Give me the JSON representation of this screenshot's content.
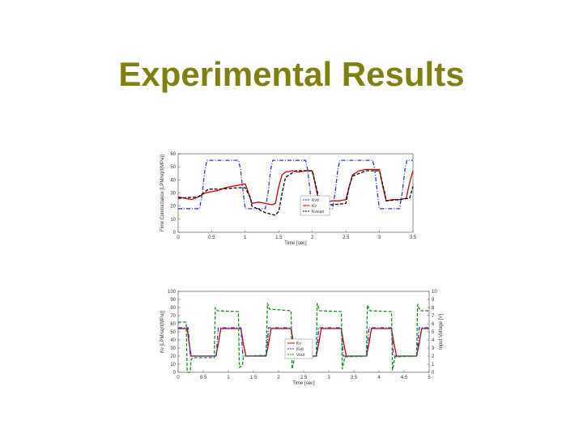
{
  "slide": {
    "title": "Experimental Results"
  },
  "chart_data": [
    {
      "type": "line",
      "xlabel": "Time [sec]",
      "ylabel": "Flow Conductance [LPM/sqrt(MPa)]",
      "xlim": [
        0,
        3.5
      ],
      "ylim": [
        0,
        60
      ],
      "xticks": [
        "0",
        "0.5",
        "1",
        "1.5",
        "2",
        "2.5",
        "3",
        "3.5"
      ],
      "yticks": [
        "0",
        "10",
        "20",
        "30",
        "40",
        "50",
        "60"
      ],
      "grid": false,
      "legend_position": "center-right",
      "series": [
        {
          "name": "Kvd",
          "color": "#1f3bd0",
          "style": "dash-dot",
          "points": [
            [
              0,
              18
            ],
            [
              0.32,
              18
            ],
            [
              0.36,
              30
            ],
            [
              0.4,
              48
            ],
            [
              0.43,
              55
            ],
            [
              0.9,
              55
            ],
            [
              0.93,
              48
            ],
            [
              0.97,
              30
            ],
            [
              1,
              18
            ],
            [
              1.3,
              18
            ],
            [
              1.34,
              30
            ],
            [
              1.38,
              48
            ],
            [
              1.41,
              55
            ],
            [
              1.9,
              55
            ],
            [
              1.93,
              48
            ],
            [
              1.97,
              30
            ],
            [
              2,
              18
            ],
            [
              2.3,
              18
            ],
            [
              2.34,
              30
            ],
            [
              2.38,
              48
            ],
            [
              2.41,
              55
            ],
            [
              2.9,
              55
            ],
            [
              2.93,
              48
            ],
            [
              2.97,
              30
            ],
            [
              3,
              18
            ],
            [
              3.3,
              18
            ],
            [
              3.34,
              30
            ],
            [
              3.38,
              48
            ],
            [
              3.41,
              55
            ],
            [
              3.5,
              55
            ]
          ]
        },
        {
          "name": "Kv",
          "color": "#d00000",
          "style": "solid",
          "points": [
            [
              0,
              27
            ],
            [
              0.1,
              26
            ],
            [
              0.2,
              25
            ],
            [
              0.3,
              27
            ],
            [
              0.4,
              30
            ],
            [
              0.5,
              31
            ],
            [
              0.6,
              32
            ],
            [
              0.7,
              34
            ],
            [
              0.8,
              35
            ],
            [
              0.9,
              36
            ],
            [
              1,
              37
            ],
            [
              1.05,
              30
            ],
            [
              1.1,
              22
            ],
            [
              1.2,
              23
            ],
            [
              1.3,
              22
            ],
            [
              1.4,
              21
            ],
            [
              1.45,
              22
            ],
            [
              1.5,
              35
            ],
            [
              1.55,
              44
            ],
            [
              1.6,
              46
            ],
            [
              1.7,
              47
            ],
            [
              1.8,
              46
            ],
            [
              1.9,
              47
            ],
            [
              2,
              47
            ],
            [
              2.05,
              35
            ],
            [
              2.1,
              22
            ],
            [
              2.2,
              23
            ],
            [
              2.3,
              24
            ],
            [
              2.4,
              24
            ],
            [
              2.5,
              25
            ],
            [
              2.55,
              35
            ],
            [
              2.6,
              44
            ],
            [
              2.7,
              47
            ],
            [
              2.8,
              48
            ],
            [
              2.9,
              48
            ],
            [
              3,
              48
            ],
            [
              3.05,
              35
            ],
            [
              3.1,
              24
            ],
            [
              3.2,
              25
            ],
            [
              3.3,
              25
            ],
            [
              3.4,
              26
            ],
            [
              3.45,
              38
            ],
            [
              3.5,
              47
            ]
          ]
        },
        {
          "name": "Kvsupr",
          "color": "#000000",
          "style": "dashed",
          "points": [
            [
              0,
              26
            ],
            [
              0.3,
              27
            ],
            [
              0.45,
              33
            ],
            [
              0.6,
              33
            ],
            [
              0.9,
              34
            ],
            [
              1,
              34
            ],
            [
              1.08,
              26
            ],
            [
              1.1,
              20
            ],
            [
              1.3,
              15
            ],
            [
              1.45,
              13
            ],
            [
              1.5,
              16
            ],
            [
              1.55,
              30
            ],
            [
              1.6,
              42
            ],
            [
              1.75,
              47
            ],
            [
              2,
              47
            ],
            [
              2.08,
              30
            ],
            [
              2.1,
              22
            ],
            [
              2.3,
              21
            ],
            [
              2.5,
              22
            ],
            [
              2.55,
              35
            ],
            [
              2.6,
              43
            ],
            [
              2.8,
              47
            ],
            [
              3,
              47
            ],
            [
              3.08,
              30
            ],
            [
              3.1,
              24
            ],
            [
              3.3,
              25
            ],
            [
              3.45,
              26
            ],
            [
              3.5,
              35
            ]
          ]
        }
      ]
    },
    {
      "type": "line",
      "xlabel": "Time [sec]",
      "ylabel": "Kv [LPM/sqrt(MPa)]",
      "ylabel_right": "Input Voltage [V]",
      "xlim": [
        0,
        5
      ],
      "ylim": [
        0,
        100
      ],
      "ylim_right": [
        0,
        10
      ],
      "xticks": [
        "0",
        "0.5",
        "1",
        "1.5",
        "2",
        "2.5",
        "3",
        "3.5",
        "4",
        "4.5",
        "5"
      ],
      "yticks": [
        "0",
        "10",
        "20",
        "30",
        "40",
        "50",
        "60",
        "70",
        "80",
        "90",
        "100"
      ],
      "yticks_right": [
        "0",
        "1",
        "2",
        "3",
        "4",
        "5",
        "6",
        "7",
        "8",
        "9",
        "10"
      ],
      "grid": false,
      "legend_position": "center-right",
      "series": [
        {
          "name": "Kv",
          "color": "#d00000",
          "style": "solid",
          "points": [
            [
              0,
              54
            ],
            [
              0.18,
              54
            ],
            [
              0.22,
              35
            ],
            [
              0.26,
              20
            ],
            [
              0.75,
              20
            ],
            [
              0.8,
              35
            ],
            [
              0.85,
              54
            ],
            [
              1.25,
              54
            ],
            [
              1.3,
              35
            ],
            [
              1.35,
              20
            ],
            [
              1.75,
              20
            ],
            [
              1.8,
              35
            ],
            [
              1.85,
              54
            ],
            [
              2.25,
              54
            ],
            [
              2.3,
              35
            ],
            [
              2.35,
              20
            ],
            [
              2.75,
              20
            ],
            [
              2.8,
              35
            ],
            [
              2.85,
              54
            ],
            [
              3.25,
              54
            ],
            [
              3.3,
              35
            ],
            [
              3.35,
              20
            ],
            [
              3.75,
              20
            ],
            [
              3.8,
              35
            ],
            [
              3.85,
              54
            ],
            [
              4.25,
              54
            ],
            [
              4.3,
              35
            ],
            [
              4.35,
              20
            ],
            [
              4.75,
              20
            ],
            [
              4.8,
              35
            ],
            [
              4.85,
              54
            ],
            [
              5,
              54
            ]
          ]
        },
        {
          "name": "Kvd",
          "color": "#1f3bd0",
          "style": "dash-dot",
          "points": [
            [
              0,
              55
            ],
            [
              0.2,
              55
            ],
            [
              0.24,
              20
            ],
            [
              0.76,
              20
            ],
            [
              0.8,
              55
            ],
            [
              1.25,
              55
            ],
            [
              1.29,
              20
            ],
            [
              1.76,
              20
            ],
            [
              1.8,
              55
            ],
            [
              2.25,
              55
            ],
            [
              2.29,
              20
            ],
            [
              2.76,
              20
            ],
            [
              2.8,
              55
            ],
            [
              3.25,
              55
            ],
            [
              3.29,
              20
            ],
            [
              3.76,
              20
            ],
            [
              3.8,
              55
            ],
            [
              4.25,
              55
            ],
            [
              4.29,
              20
            ],
            [
              4.76,
              20
            ],
            [
              4.8,
              55
            ],
            [
              5,
              55
            ]
          ]
        },
        {
          "name": "Vout",
          "color": "#1a8a1a",
          "style": "dashed",
          "axis": "right",
          "points": [
            [
              0,
              6.2
            ],
            [
              0.16,
              6.2
            ],
            [
              0.18,
              0
            ],
            [
              0.24,
              0
            ],
            [
              0.26,
              1.6
            ],
            [
              0.3,
              1.8
            ],
            [
              0.72,
              1.8
            ],
            [
              0.74,
              8
            ],
            [
              0.78,
              7.6
            ],
            [
              1.2,
              7.5
            ],
            [
              1.22,
              0.6
            ],
            [
              1.28,
              0.8
            ],
            [
              1.3,
              2
            ],
            [
              1.75,
              2.1
            ],
            [
              1.78,
              8.5
            ],
            [
              1.82,
              7.8
            ],
            [
              2.25,
              7.6
            ],
            [
              2.27,
              0.4
            ],
            [
              2.32,
              1.8
            ],
            [
              2.75,
              2
            ],
            [
              2.77,
              8.5
            ],
            [
              2.82,
              7.6
            ],
            [
              3.25,
              7.5
            ],
            [
              3.27,
              0.4
            ],
            [
              3.32,
              1.9
            ],
            [
              3.75,
              2
            ],
            [
              3.77,
              8.3
            ],
            [
              3.82,
              7.6
            ],
            [
              4.25,
              7.5
            ],
            [
              4.27,
              0.3
            ],
            [
              4.32,
              1.9
            ],
            [
              4.75,
              2
            ],
            [
              4.77,
              8.4
            ],
            [
              4.82,
              7.6
            ],
            [
              5,
              7.6
            ]
          ]
        }
      ]
    }
  ]
}
